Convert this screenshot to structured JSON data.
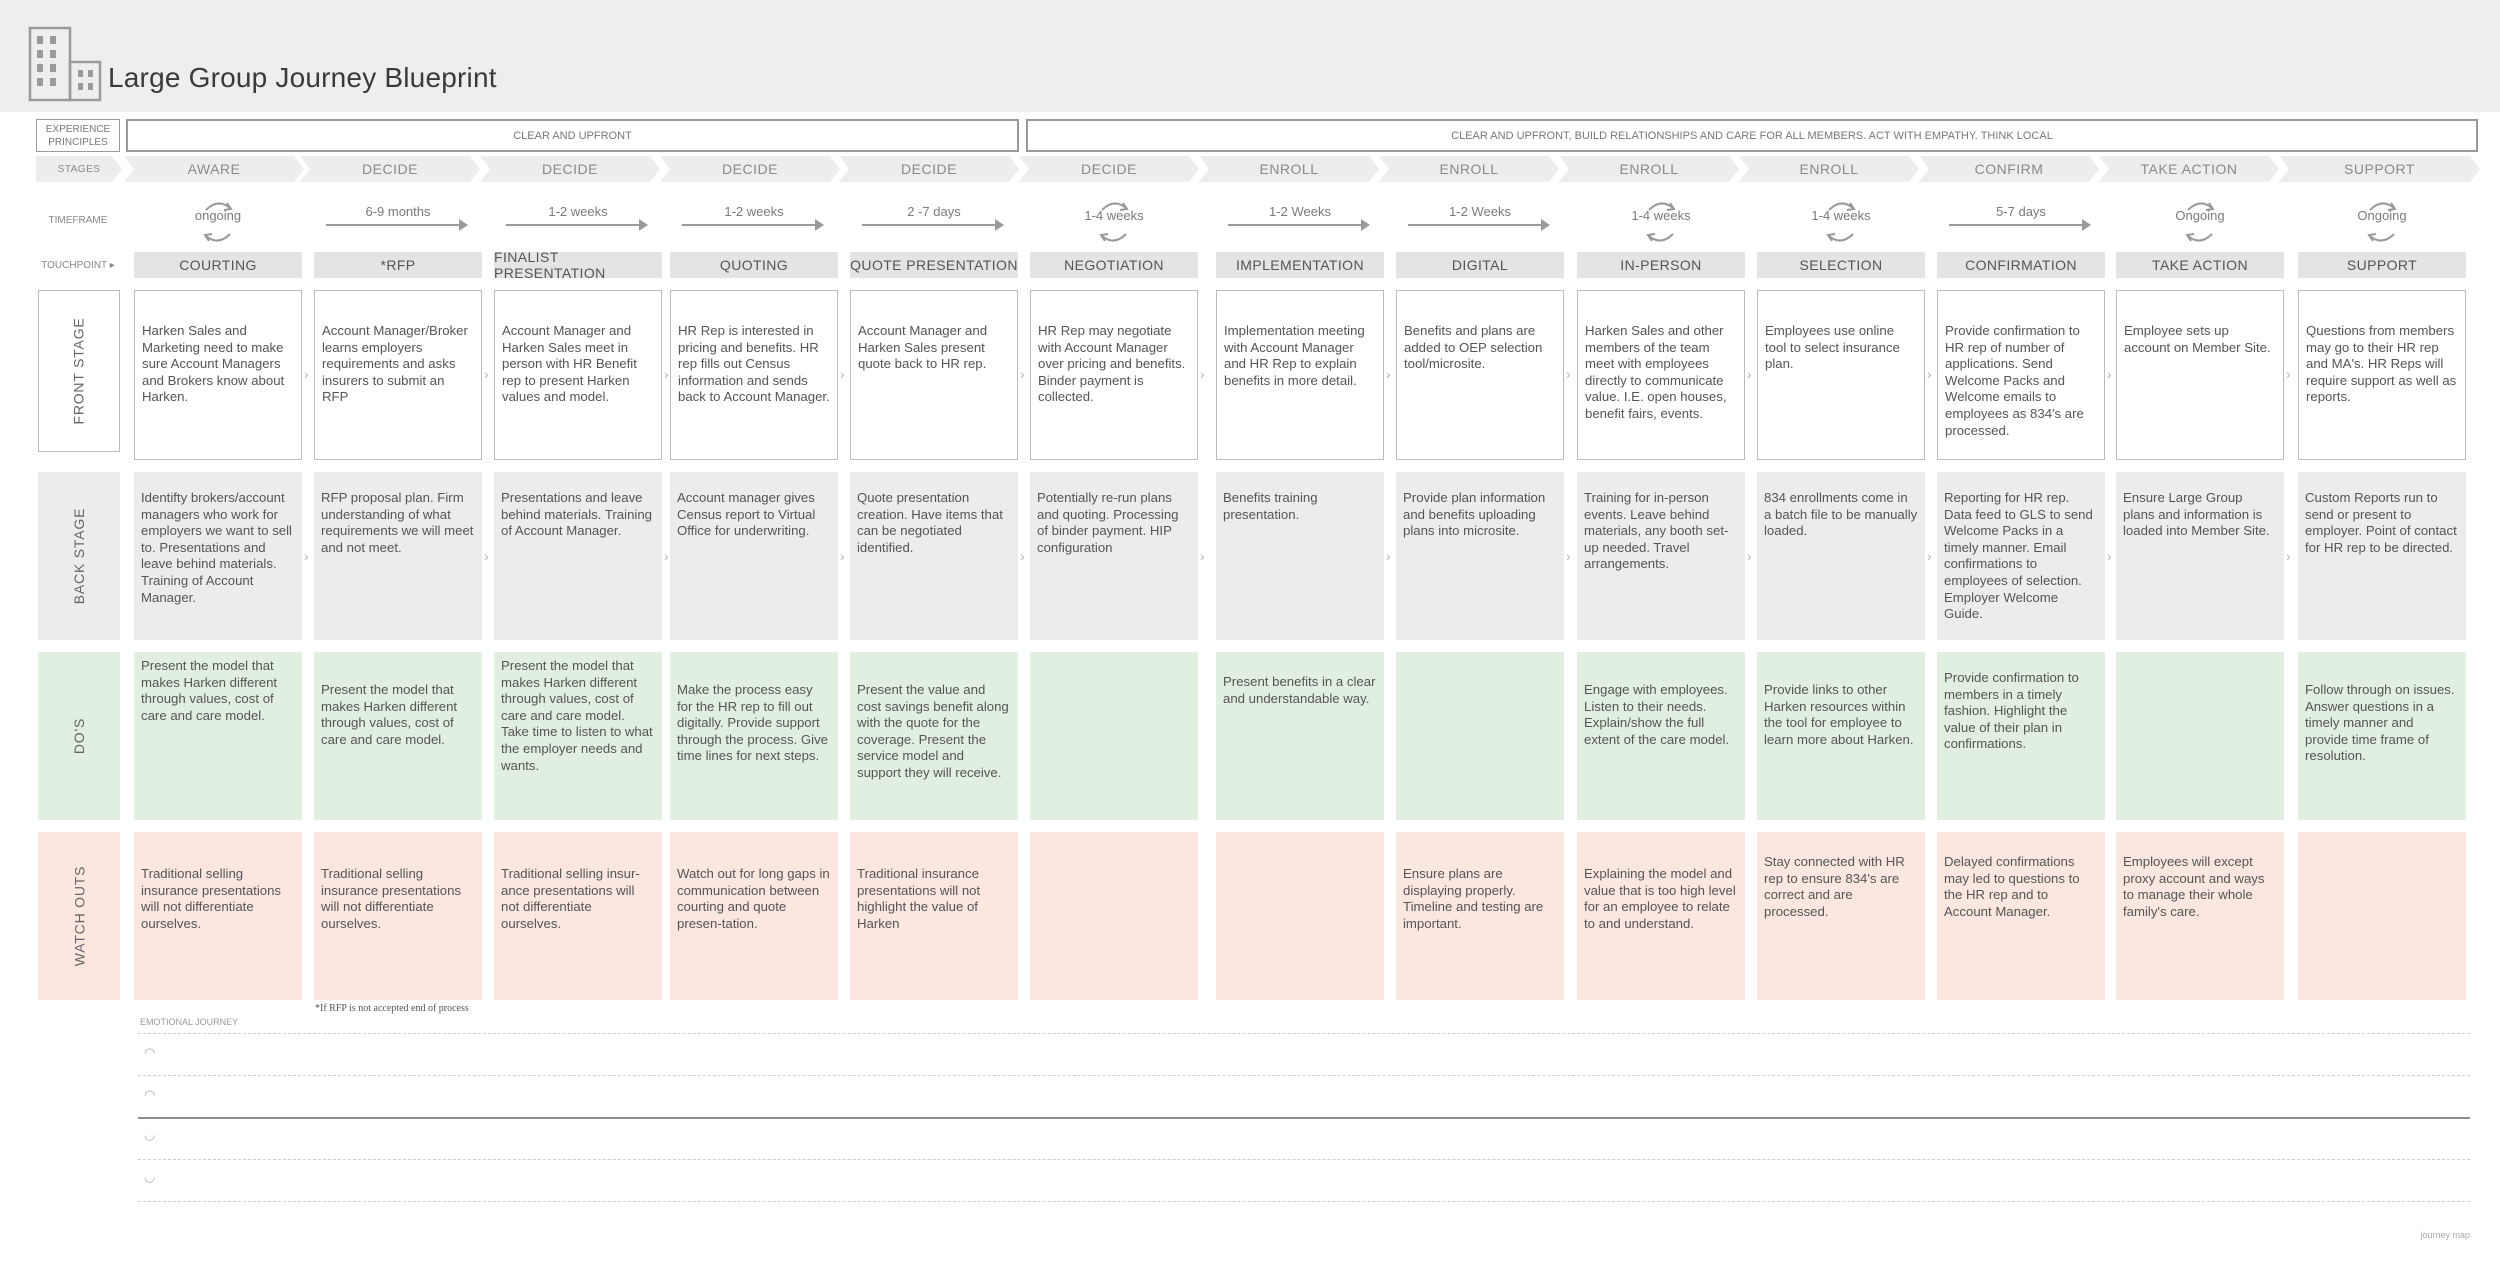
{
  "title": "Large Group Journey Blueprint",
  "labels": {
    "experience_principles": "EXPERIENCE PRINCIPLES",
    "stages": "STAGES",
    "timeframe": "TIMEFRAME",
    "touchpoint": "TOUCHPOINT",
    "front_stage": "FRONT STAGE",
    "back_stage": "BACK STAGE",
    "dos": "DO'S",
    "watch_outs": "WATCH OUTS",
    "emotional_journey": "EMOTIONAL JOURNEY"
  },
  "principles": {
    "left": "CLEAR AND UPFRONT",
    "right": "CLEAR AND UPFRONT, BUILD RELATIONSHIPS AND CARE FOR ALL MEMBERS. ACT WITH EMPATHY. THINK LOCAL"
  },
  "stages": [
    "AWARE",
    "DECIDE",
    "DECIDE",
    "DECIDE",
    "DECIDE",
    "DECIDE",
    "ENROLL",
    "ENROLL",
    "ENROLL",
    "ENROLL",
    "CONFIRM",
    "TAKE ACTION",
    "SUPPORT"
  ],
  "timeframes": [
    {
      "text": "ongoing",
      "kind": "cycle"
    },
    {
      "text": "6-9 months",
      "kind": "arrow"
    },
    {
      "text": "1-2 weeks",
      "kind": "arrow"
    },
    {
      "text": "1-2 weeks",
      "kind": "arrow"
    },
    {
      "text": "2 -7 days",
      "kind": "arrow"
    },
    {
      "text": "1-4 weeks",
      "kind": "cycle"
    },
    {
      "text": "1-2 Weeks",
      "kind": "arrow"
    },
    {
      "text": "1-2 Weeks",
      "kind": "arrow"
    },
    {
      "text": "1-4 weeks",
      "kind": "cycle"
    },
    {
      "text": "1-4 weeks",
      "kind": "cycle"
    },
    {
      "text": "5-7 days",
      "kind": "arrow"
    },
    {
      "text": "Ongoing",
      "kind": "cycle"
    },
    {
      "text": "Ongoing",
      "kind": "cycle"
    }
  ],
  "touchpoints": [
    "COURTING",
    "*RFP",
    "FINALIST PRESENTATION",
    "QUOTING",
    "QUOTE PRESENTATION",
    "NEGOTIATION",
    "IMPLEMENTATION",
    "DIGITAL",
    "IN-PERSON",
    "SELECTION",
    "CONFIRMATION",
    "TAKE ACTION",
    "SUPPORT"
  ],
  "front_stage": [
    "Harken Sales and Marketing need to make sure Account Managers and Brokers know about Harken.",
    "Account Manager/Broker learns employers requirements and asks insurers to submit an RFP",
    " Account Manager and Harken Sales meet in person with HR Benefit rep to present Harken values and model.",
    "HR Rep is interested in pricing and benefits. HR rep fills out Census information and sends back to Account Manager.",
    "Account Manager and Harken Sales present quote back to HR rep.",
    "HR Rep may negotiate with Account Manager over pricing and benefits. Binder payment is collected.",
    "Implementation meeting with Account Manager and HR Rep to explain benefits in more detail.",
    "Benefits and plans are added to OEP selection tool/microsite.",
    "Harken Sales and other members of the team meet with employees directly to communicate value. I.E. open houses, benefit fairs, events.",
    "Employees use online tool to select insurance plan.",
    "Provide confirmation to HR rep of number of applications. Send Welcome Packs and Welcome emails to employees as 834's are processed.",
    "Employee sets up account on Member Site.",
    "Questions from members may go to their HR rep and MA's. HR Reps will require support as well as reports."
  ],
  "back_stage": [
    "Identifty brokers/account managers who work for employers we want to sell to. Presentations and leave behind materials. Training of Account Manager.",
    "RFP proposal plan. Firm understanding of what requirements we will meet and not meet.",
    "Presentations and leave behind materials. Training of Account Manager.",
    "Account manager gives Census report to Virtual Office for underwriting.",
    "Quote presentation creation. Have items that can be negotiated identified.",
    "Potentially re-run plans and quoting. Processing of binder payment. HIP configuration",
    "Benefits training presentation.",
    "Provide plan information and benefits uploading plans into microsite.",
    "Training for in-person events. Leave behind materials, any booth set-up needed. Travel arrangements.",
    "834 enrollments come in a batch file to be manually loaded.",
    "Reporting for HR rep. Data feed to GLS to send Welcome Packs in a timely manner. Email confirmations to employees of selection. Employer Welcome Guide.",
    "Ensure Large Group plans and information is loaded into Member Site.",
    "Custom Reports run to send or present to employer. Point of contact for HR rep to be directed."
  ],
  "dos": [
    "Present the model that makes Harken different through values, cost of care and care model.",
    "Present the model that makes Harken different through values, cost of care and care model.",
    "Present the model that makes Harken different through values, cost of care and care model. Take time to listen to what the employer needs and wants.",
    "Make the process easy for the HR rep to fill out digitally. Provide support through the process. Give time lines for next steps.",
    "Present the value and cost savings benefit along with the quote for the coverage. Present the service model and support they will receive.",
    "",
    "Present benefits in a clear and understandable way.",
    "",
    "Engage with employees. Listen to their needs. Explain/show the full extent of the care model.",
    "Provide links to other Harken resources within the tool for employee to learn more about Harken.",
    "Provide confirmation to members in a timely fashion. Highlight the value of their plan in confirmations.",
    "",
    "Follow through on issues. Answer questions in a timely manner and provide time frame of resolution."
  ],
  "watch_outs": [
    "Traditional selling insurance presentations will not differentiate ourselves.",
    "Traditional selling insurance presentations will not differentiate ourselves.",
    "Traditional selling insur-ance presentations will not differentiate ourselves.",
    "Watch out for long gaps in communication between courting and quote presen-tation.",
    "Traditional insurance presentations will not highlight the value of Harken",
    "",
    "",
    "Ensure plans are displaying properly. Timeline and testing are important.",
    "Explaining the model and value that is too high level for an employee to relate to and understand.",
    "Stay connected with HR rep to ensure 834's are correct and are processed.",
    "Delayed confirmations may led to questions to the HR rep and to Account Manager.",
    "Employees will except proxy account and ways to manage their whole family's care.",
    ""
  ],
  "footnote": "*If RFP is not accepted end of process",
  "corner_note": "journey map",
  "colors": {
    "dos_bg": "#e0efe0",
    "watch_bg": "#fbe6e0",
    "back_bg": "#ececec",
    "header_bg": "#eeeeee"
  }
}
